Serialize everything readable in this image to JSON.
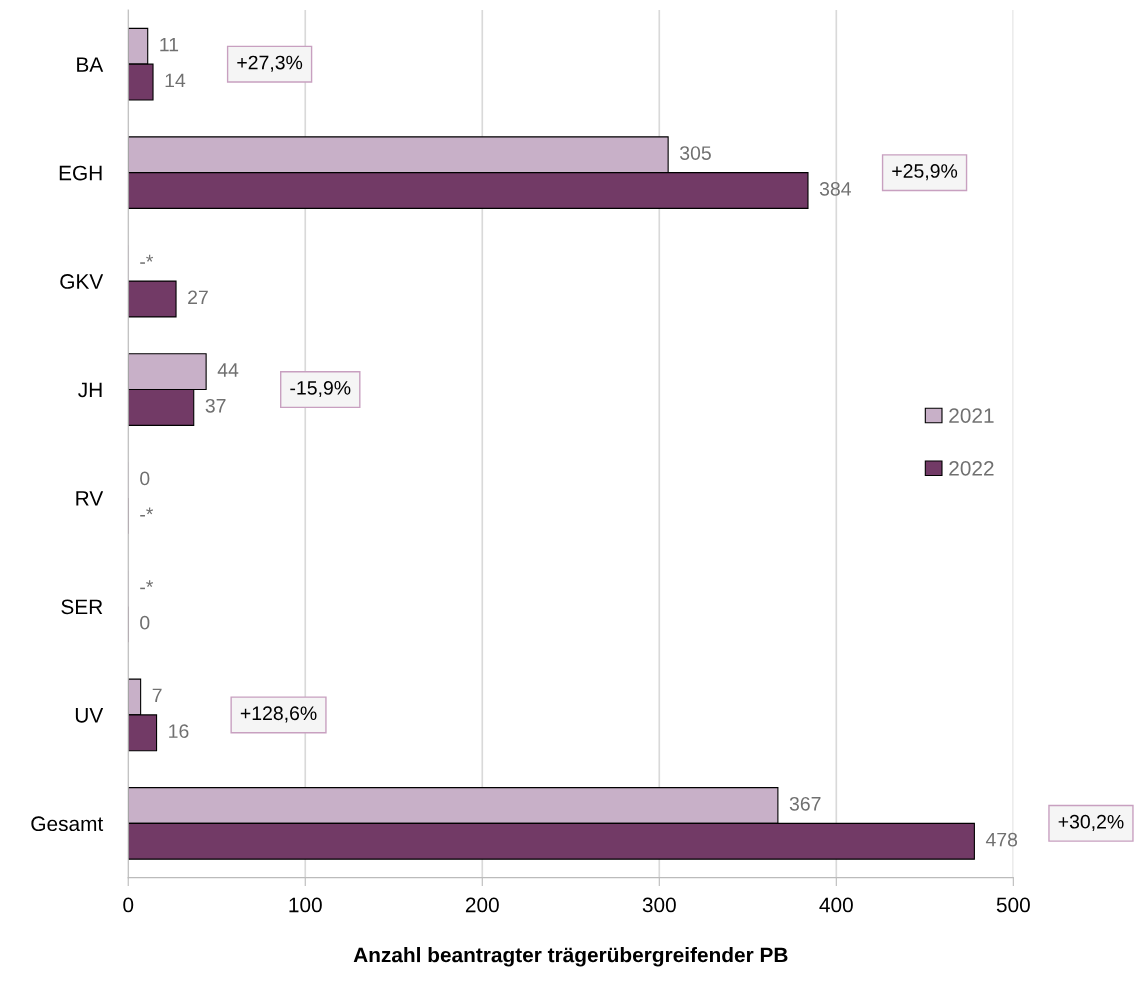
{
  "chart_data": {
    "type": "bar",
    "orientation": "horizontal",
    "categories": [
      "BA",
      "EGH",
      "GKV",
      "JH",
      "RV",
      "SER",
      "UV",
      "Gesamt"
    ],
    "series": [
      {
        "name": "2021",
        "color": "#c8b0c8",
        "values": [
          11,
          305,
          null,
          44,
          0,
          null,
          7,
          367
        ],
        "value_labels": [
          "11",
          "305",
          "-*",
          "44",
          "0",
          "-*",
          "7",
          "367"
        ]
      },
      {
        "name": "2022",
        "color": "#723a66",
        "values": [
          14,
          384,
          27,
          37,
          null,
          0,
          16,
          478
        ],
        "value_labels": [
          "14",
          "384",
          "27",
          "37",
          "-*",
          "0",
          "16",
          "478"
        ]
      }
    ],
    "xlabel": "Anzahl beantragter trägerübergreifender PB",
    "xlim": [
      0,
      500
    ],
    "xticks": [
      0,
      100,
      200,
      300,
      400,
      500
    ],
    "grid": "x",
    "legend": "right",
    "annotations": [
      "+27,3%",
      "+25,9%",
      "-15,9%",
      "+128,6%",
      "+30,2%"
    ]
  }
}
